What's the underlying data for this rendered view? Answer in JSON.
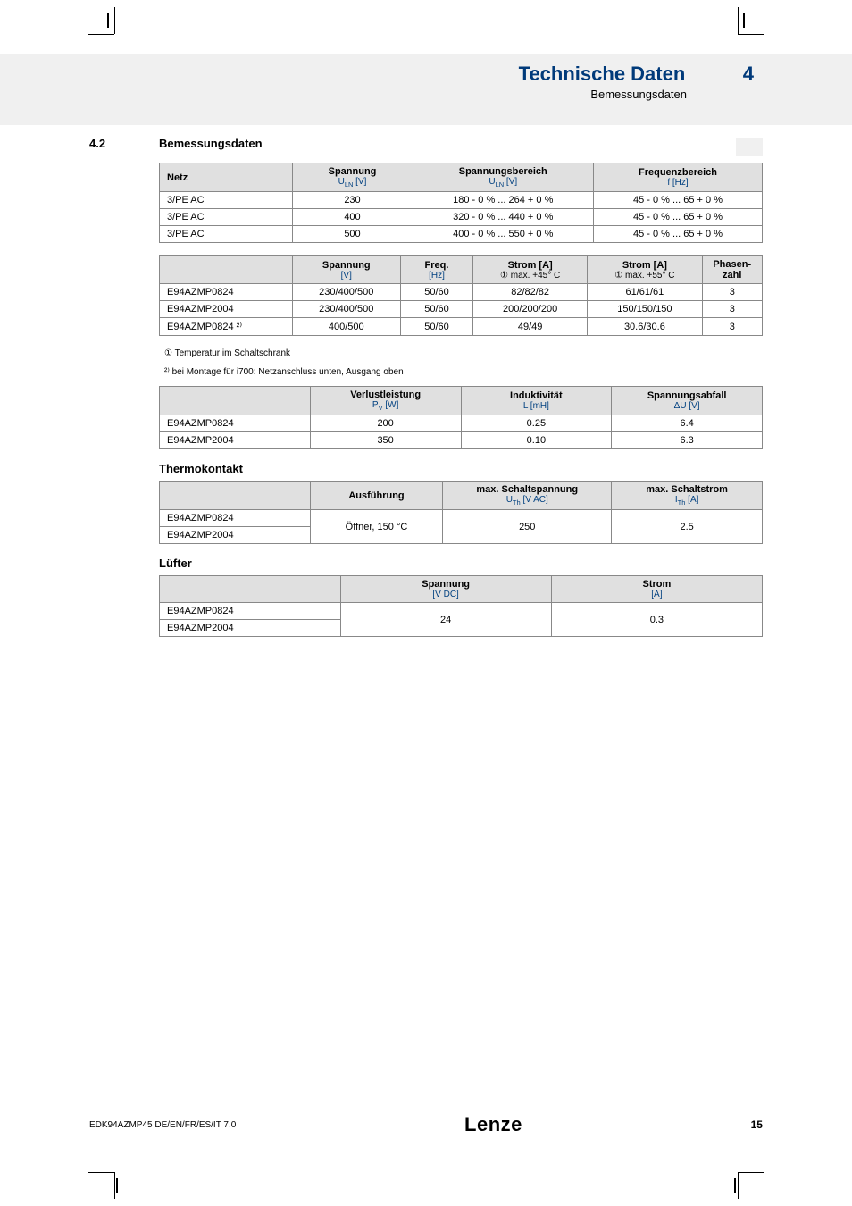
{
  "header": {
    "title": "Technische Daten",
    "chapter": "4",
    "subtitle": "Bemessungsdaten"
  },
  "section": {
    "num": "4.2",
    "title": "Bemessungsdaten"
  },
  "table1": {
    "headers": [
      "Netz",
      "Spannung",
      "Spannungsbereich",
      "Frequenzbereich"
    ],
    "sub": [
      "",
      "U_LN [V]",
      "U_LN [V]",
      "f [Hz]"
    ],
    "rows": [
      [
        "3/PE AC",
        "230",
        "180 - 0 % ... 264 + 0 %",
        "45 - 0 % ... 65 + 0 %"
      ],
      [
        "3/PE AC",
        "400",
        "320 - 0 % ... 440 + 0 %",
        "45 - 0 % ... 65 + 0 %"
      ],
      [
        "3/PE AC",
        "500",
        "400 - 0 % ... 550 + 0 %",
        "45 - 0 % ... 65 + 0 %"
      ]
    ]
  },
  "table2": {
    "headers": [
      "",
      "Spannung",
      "Freq.",
      "Strom [A]",
      "Strom [A]",
      "Phasen-zahl"
    ],
    "sub": [
      "",
      "[V]",
      "[Hz]",
      "① max. +45° C",
      "① max. +55° C",
      ""
    ],
    "rows": [
      [
        "E94AZMP0824",
        "230/400/500",
        "50/60",
        "82/82/82",
        "61/61/61",
        "3"
      ],
      [
        "E94AZMP2004",
        "230/400/500",
        "50/60",
        "200/200/200",
        "150/150/150",
        "3"
      ],
      [
        "E94AZMP0824 ²⁾",
        "400/500",
        "50/60",
        "49/49",
        "30.6/30.6",
        "3"
      ]
    ]
  },
  "notes": {
    "n1": "① Temperatur im Schaltschrank",
    "n2": "²⁾ bei Montage für i700: Netzanschluss unten, Ausgang oben"
  },
  "table3": {
    "headers": [
      "",
      "Verlustleistung",
      "Induktivität",
      "Spannungsabfall"
    ],
    "sub": [
      "",
      "P_V [W]",
      "L [mH]",
      "ΔU [V]"
    ],
    "rows": [
      [
        "E94AZMP0824",
        "200",
        "0.25",
        "6.4"
      ],
      [
        "E94AZMP2004",
        "350",
        "0.10",
        "6.3"
      ]
    ]
  },
  "thermo_title": "Thermokontakt",
  "table4": {
    "headers": [
      "",
      "Ausführung",
      "max. Schaltspannung",
      "max. Schaltstrom"
    ],
    "sub": [
      "",
      "",
      "U_Th [V AC]",
      "I_Th [A]"
    ],
    "rows_col0": [
      "E94AZMP0824",
      "E94AZMP2004"
    ],
    "merged": [
      "Öffner, 150 °C",
      "250",
      "2.5"
    ]
  },
  "fan_title": "Lüfter",
  "table5": {
    "headers": [
      "",
      "Spannung",
      "Strom"
    ],
    "sub": [
      "",
      "[V DC]",
      "[A]"
    ],
    "rows_col0": [
      "E94AZMP0824",
      "E94AZMP2004"
    ],
    "merged": [
      "24",
      "0.3"
    ]
  },
  "footer": {
    "left": "EDK94AZMP45  DE/EN/FR/ES/IT  7.0",
    "logo": "Lenze",
    "page": "15"
  },
  "colors": {
    "heading": "#003a7a",
    "sub_unit": "#003a7a",
    "th_bg": "#e0e0e0",
    "band_bg": "#f0f0f0",
    "border": "#888888"
  }
}
